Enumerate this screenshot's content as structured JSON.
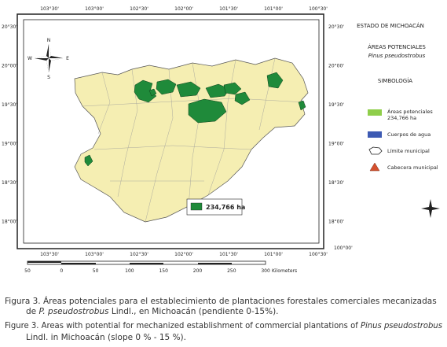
{
  "map": {
    "top_lon_labels": [
      "103°30'",
      "103°00'",
      "102°30'",
      "102°00'",
      "101°30'",
      "101°00'",
      "100°30'"
    ],
    "bottom_lon_labels": [
      "103°30'",
      "103°00'",
      "102°30'",
      "102°00'",
      "101°30'",
      "101°00'",
      "100°30'"
    ],
    "left_lat_labels": [
      "20°30'",
      "20°00'",
      "19°30'",
      "19°00'",
      "18°30'",
      "18°00'"
    ],
    "right_lat_labels": [
      "20°30'",
      "20°00'",
      "19°30'",
      "19°00'",
      "18°30'",
      "18°00'"
    ],
    "corner_label": "100°00'",
    "compass": {
      "n": "N",
      "s": "S",
      "e": "E",
      "w": "W"
    },
    "area_label": "234,766 ha"
  },
  "legend": {
    "title": "ESTADO DE MICHOACÁN",
    "subtitle": "ÁREAS POTENCIALES",
    "species": "Pinus pseudostrobus",
    "heading": "SIMBOLOGÍA",
    "items": [
      {
        "label": "Áreas potenciales",
        "sublabel": "234,766 ha"
      },
      {
        "label": "Cuerpos de agua"
      },
      {
        "label": "Límite municipal"
      },
      {
        "label": "Cabecera municipal"
      }
    ]
  },
  "scale_bar": {
    "labels": [
      "50",
      "0",
      "50",
      "100",
      "150",
      "200",
      "250",
      "300"
    ],
    "unit": "Kilometers"
  },
  "caption": {
    "es_1": "Figura 3. Áreas potenciales para el establecimiento de plantaciones forestales comerciales mecanizadas",
    "es_2a": "de ",
    "es_species": "P. pseudostrobus",
    "es_2b": " Lindl., en Michoacán (pendiente 0-15%).",
    "en_1a": "Figure 3. Areas with potential for mechanized establishment of commercial plantations of ",
    "en_species": "Pinus pseudostrobus",
    "en_2": "Lindl. in Michoacán (slope 0 % - 15 %)."
  }
}
